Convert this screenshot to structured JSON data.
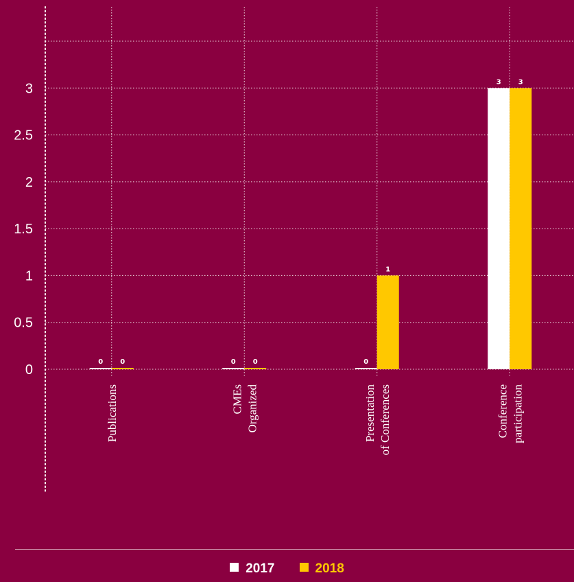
{
  "chart_data": {
    "type": "bar",
    "categories": [
      [
        "Publications"
      ],
      [
        "CMEs",
        "Organized"
      ],
      [
        "Presentation",
        "of Conferences"
      ],
      [
        "Conference",
        "participation"
      ]
    ],
    "series": [
      {
        "name": "2017",
        "values": [
          0,
          0,
          0,
          3
        ],
        "color": "#ffffff"
      },
      {
        "name": "2018",
        "values": [
          0,
          0,
          1,
          3
        ],
        "color": "#ffc800"
      }
    ],
    "yticks": [
      "0",
      "0.5",
      "1",
      "1.5",
      "2",
      "2.5",
      "3"
    ],
    "ylim": [
      0,
      3.5
    ],
    "grid": true,
    "legend_position": "bottom",
    "colors": {
      "background": "#8a0040",
      "gridline": "#ffffff"
    }
  }
}
